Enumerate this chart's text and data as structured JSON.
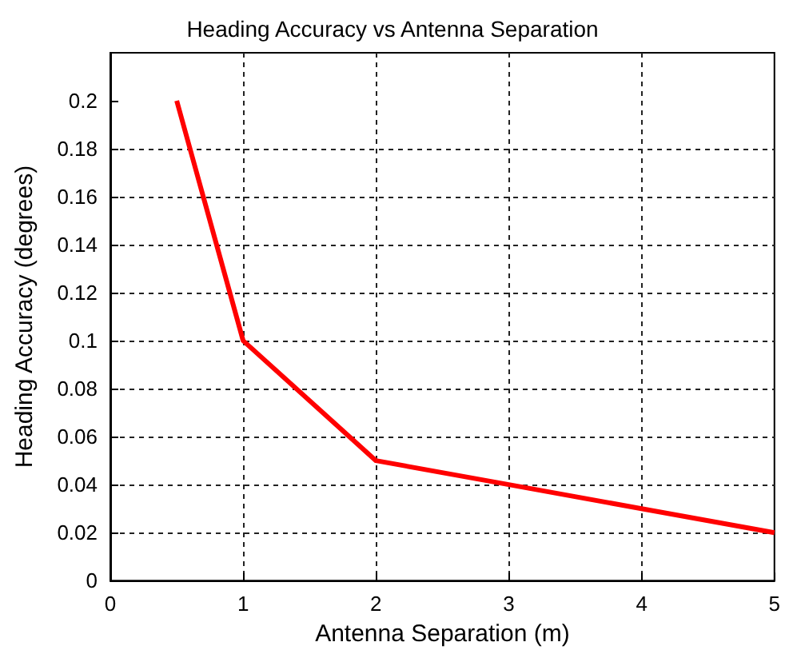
{
  "chart_data": {
    "type": "line",
    "title": "Heading Accuracy vs Antenna Separation",
    "xlabel": "Antenna Separation (m)",
    "ylabel": "Heading Accuracy (degrees)",
    "x": [
      0.5,
      1,
      2,
      3,
      4,
      5
    ],
    "series": [
      {
        "color": "#ff0000",
        "values": [
          0.2,
          0.1,
          0.05,
          0.04,
          0.03,
          0.02
        ]
      }
    ],
    "xlim": [
      0,
      5
    ],
    "xticks": [
      0,
      1,
      2,
      3,
      4,
      5
    ],
    "ylim": [
      0,
      0.22
    ],
    "yticks": [
      0,
      0.02,
      0.04,
      0.06,
      0.08,
      0.1,
      0.12,
      0.14,
      0.16,
      0.18,
      0.2
    ],
    "grid": true,
    "marker": "none",
    "line_style": "solid"
  }
}
